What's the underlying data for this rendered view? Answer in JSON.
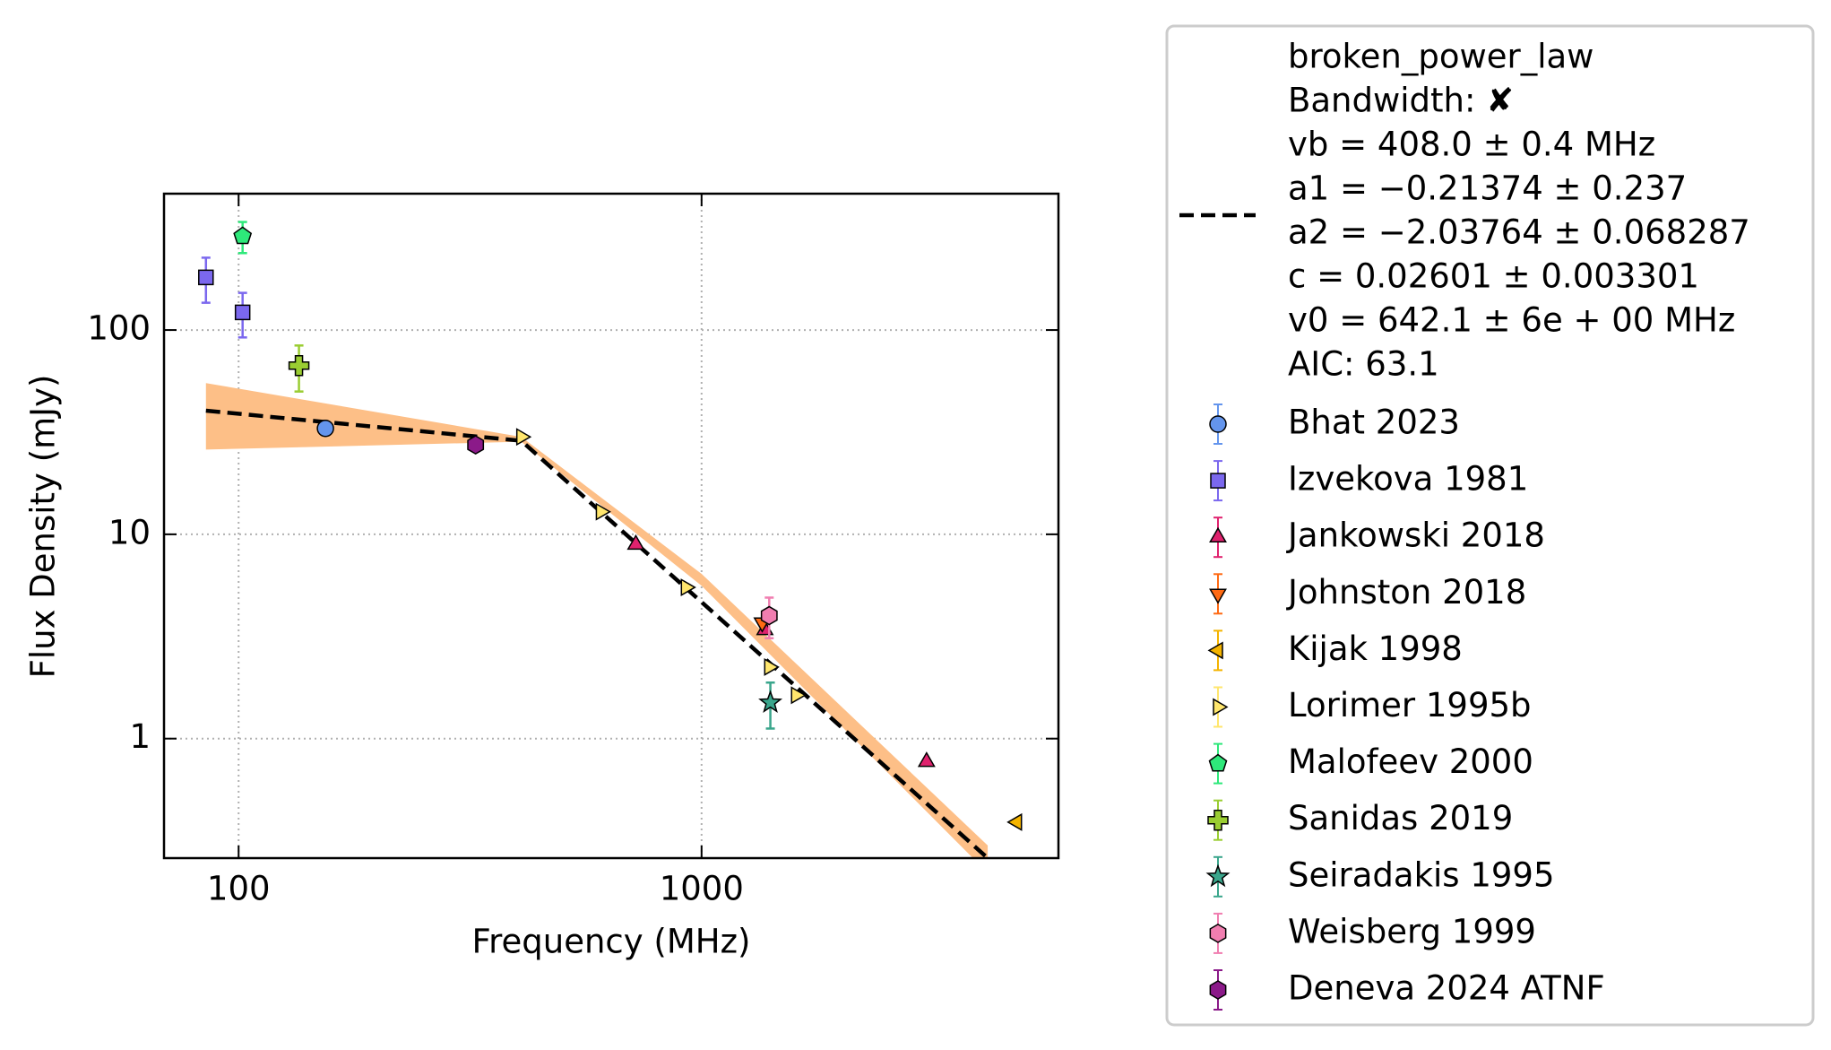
{
  "chart_data": {
    "type": "scatter",
    "x_label": "Frequency (MHz)",
    "y_label": "Flux Density (mJy)",
    "x_scale": "log",
    "y_scale": "log",
    "xlim": [
      69,
      5900
    ],
    "ylim": [
      0.26,
      465
    ],
    "xticks": [
      100,
      1000
    ],
    "yticks": [
      1,
      10,
      100
    ],
    "grid": true,
    "fit": {
      "name": [
        "broken_power_law",
        "Bandwidth: ✘",
        "vb = 408.0 ± 0.4 MHz",
        "a1 = −0.21374 ± 0.237",
        "a2 = −2.03764 ± 0.068287",
        "c = 0.02601 ± 0.003301",
        "v0 = 642.1 ± 6e + 00 MHz",
        "AIC: 63.1"
      ],
      "color": "#000000",
      "band_color": "#fdbf87",
      "x": [
        85,
        408,
        4150
      ],
      "y": [
        40.3,
        28.7,
        0.26
      ],
      "band_x": [
        85,
        408,
        1000,
        4150
      ],
      "band_upper": [
        55,
        30,
        6.4,
        0.3
      ],
      "band_lower": [
        26,
        28.4,
        5.6,
        0.22
      ]
    },
    "series": [
      {
        "name": "Bhat 2023",
        "color": "#6495ed",
        "marker": "circle",
        "x": [
          154
        ],
        "y": [
          33
        ],
        "yerr": [
          null
        ]
      },
      {
        "name": "Izvekova 1981",
        "color": "#7b68ee",
        "marker": "square",
        "x": [
          85,
          102
        ],
        "y": [
          181,
          122
        ],
        "yerr": [
          45,
          30
        ]
      },
      {
        "name": "Jankowski 2018",
        "color": "#e0226e",
        "marker": "triangle-up",
        "x": [
          721,
          1370,
          3062
        ],
        "y": [
          8.9,
          3.4,
          0.77
        ],
        "yerr": [
          null,
          null,
          null
        ]
      },
      {
        "name": "Johnston 2018",
        "color": "#ff6a13",
        "marker": "triangle-down",
        "x": [
          1352
        ],
        "y": [
          3.7
        ],
        "yerr": [
          null
        ]
      },
      {
        "name": "Kijak 1998",
        "color": "#f4b400",
        "marker": "triangle-left",
        "x": [
          4800
        ],
        "y": [
          0.39
        ],
        "yerr": [
          null
        ]
      },
      {
        "name": "Lorimer 1995b",
        "color": "#ffe66d",
        "marker": "triangle-right",
        "x": [
          408,
          606,
          925,
          1400,
          1600
        ],
        "y": [
          30,
          12.9,
          5.5,
          2.24,
          1.63
        ],
        "yerr": [
          null,
          null,
          null,
          null,
          null
        ]
      },
      {
        "name": "Malofeev 2000",
        "color": "#2ee87a",
        "marker": "pentagon",
        "x": [
          102
        ],
        "y": [
          288
        ],
        "yerr": [
          50
        ]
      },
      {
        "name": "Sanidas 2019",
        "color": "#9acd32",
        "marker": "plus",
        "x": [
          135
        ],
        "y": [
          67
        ],
        "yerr": [
          17
        ]
      },
      {
        "name": "Seiradakis 1995",
        "color": "#3aa68c",
        "marker": "star",
        "x": [
          1408
        ],
        "y": [
          1.5
        ],
        "yerr": [
          0.38
        ]
      },
      {
        "name": "Weisberg 1999",
        "color": "#f07eb0",
        "marker": "hexagon",
        "x": [
          1400
        ],
        "y": [
          4.0
        ],
        "yerr": [
          0.9
        ]
      },
      {
        "name": "Deneva 2024 ATNF",
        "color": "#8b1a89",
        "marker": "hexagon",
        "x": [
          325
        ],
        "y": [
          27.4
        ],
        "yerr": [
          null
        ]
      }
    ]
  }
}
